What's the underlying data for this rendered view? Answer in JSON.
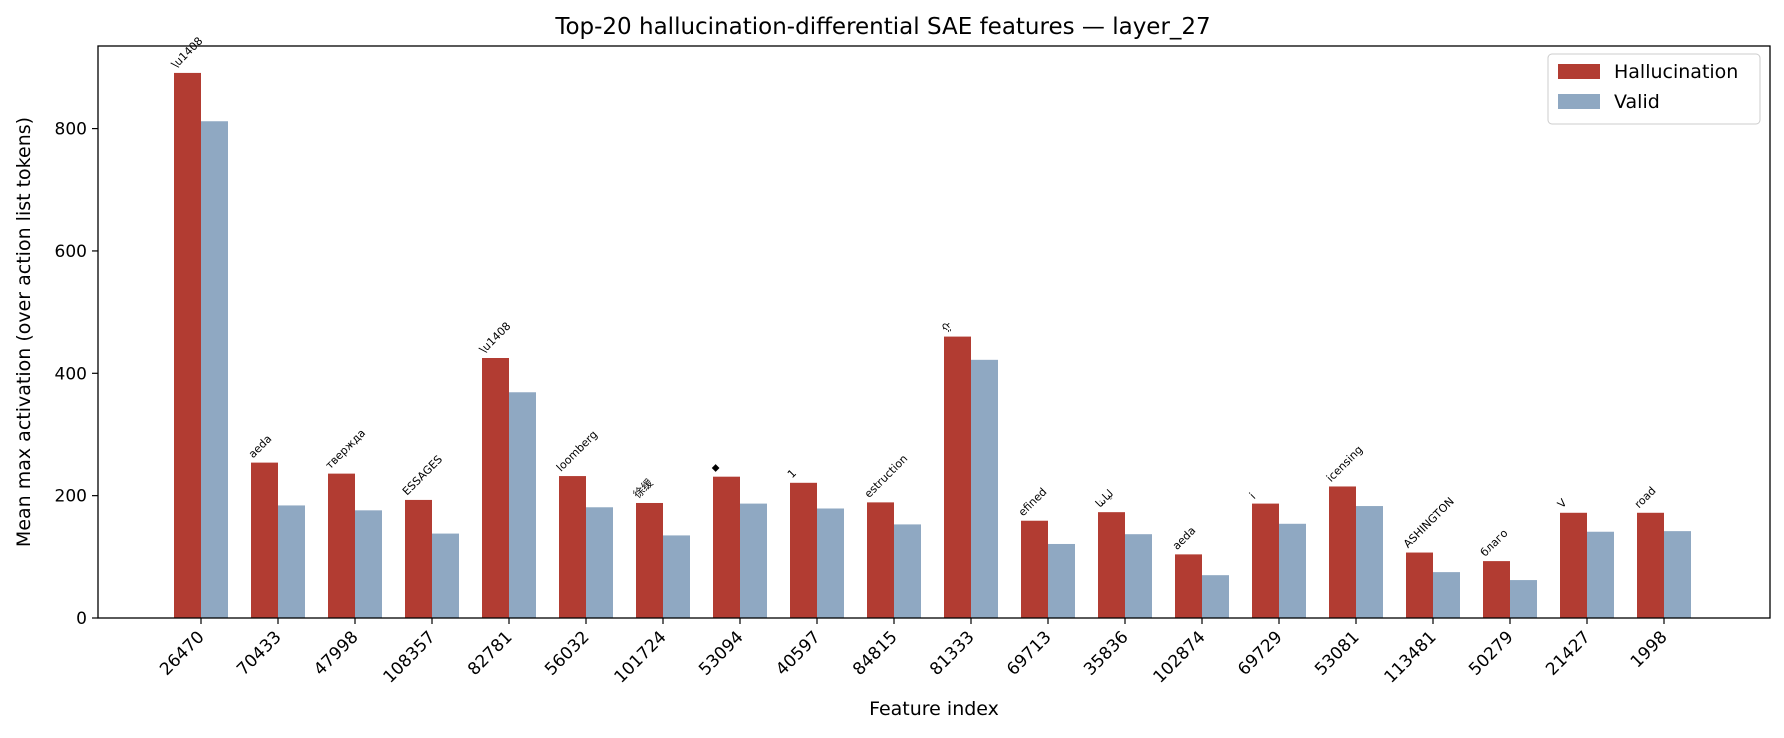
{
  "chart_data": {
    "type": "bar",
    "title": "Top-20 hallucination-differential SAE features — layer_27",
    "xlabel": "Feature index",
    "ylabel": "Mean max activation (over action list tokens)",
    "ylim": [
      0,
      935
    ],
    "yticks": [
      0,
      200,
      400,
      600,
      800
    ],
    "legend_position": "top-right",
    "grid": false,
    "categories": [
      "26470",
      "70433",
      "47998",
      "108357",
      "82781",
      "56032",
      "101724",
      "53094",
      "40597",
      "84815",
      "81333",
      "69713",
      "35836",
      "102874",
      "69729",
      "53081",
      "113481",
      "50279",
      "21427",
      "1998"
    ],
    "annotations": [
      "\\u1408",
      "aeda",
      "твержда",
      "ESSAGES",
      "\\u1408",
      "loomberg",
      "徐缓",
      "▪",
      "1",
      "estruction",
      "ᠭ",
      "efined",
      "لیاںنا",
      "aeda",
      "i",
      "icensing",
      "ASHINGTON",
      "благо",
      "V",
      "road"
    ],
    "series": [
      {
        "name": "Hallucination",
        "color": "#b23c32",
        "values": [
          891,
          254,
          236,
          193,
          425,
          232,
          188,
          231,
          221,
          189,
          460,
          159,
          173,
          104,
          187,
          215,
          107,
          93,
          172,
          172
        ]
      },
      {
        "name": "Valid",
        "color": "#8fa8c2",
        "values": [
          812,
          184,
          176,
          138,
          369,
          181,
          135,
          187,
          179,
          153,
          422,
          121,
          137,
          70,
          154,
          183,
          75,
          62,
          141,
          142
        ]
      }
    ]
  }
}
